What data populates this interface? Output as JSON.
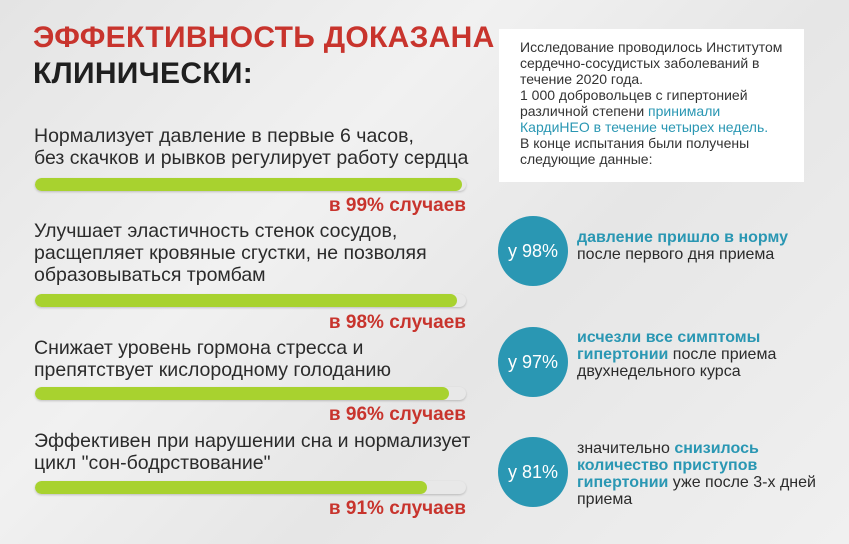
{
  "heading": {
    "line1": "ЭФФЕКТИВНОСТЬ ДОКАЗАНА",
    "line2": "КЛИНИЧЕСКИ:"
  },
  "benefits": [
    {
      "line1": "Нормализует давление в первые 6 часов,",
      "line2": "без скачков и рывков регулирует работу сердца",
      "line3": "",
      "percent": 99,
      "label": "в 99% случаев"
    },
    {
      "line1": "Улучшает эластичность стенок сосудов,",
      "line2": "расщепляет кровяные сгустки, не позволяя",
      "line3": "образовываться тромбам",
      "percent": 98,
      "label": "в 98% случаев"
    },
    {
      "line1": "Снижает уровень гормона стресса и",
      "line2": "препятствует кислородному голоданию",
      "line3": "",
      "percent": 96,
      "label": "в 96% случаев"
    },
    {
      "line1": "Эффективен при нарушении сна и нормализует",
      "line2": "цикл \"сон-бодрствование\"",
      "line3": "",
      "percent": 91,
      "label": "в 91% случаев"
    }
  ],
  "study": {
    "p1": "Исследование проводилось Институтом сердечно-сосудистых заболеваний в течение 2020 года.",
    "p2_start": "1 000 добровольцев с гипертонией различной степени ",
    "p2_highlight": "принимали КардиНЕО в течение четырех недель.",
    "p3": "В конце испытания были получены следующие данные:"
  },
  "stats": [
    {
      "badge": "у 98%",
      "pre": "",
      "bold": "давление пришло в норму",
      "post": " после первого дня приема"
    },
    {
      "badge": "у 97%",
      "pre": "",
      "bold": "исчезли все симптомы гипертонии",
      "post": " после приема двухнедельного курса"
    },
    {
      "badge": "у 81%",
      "pre": "значительно ",
      "bold": "снизилось количество приступов гипертонии",
      "post": " уже после 3-х дней приема"
    }
  ],
  "colors": {
    "accent_red": "#c8342d",
    "accent_blue": "#2a97b3",
    "bar_green": "#a8d22f"
  }
}
